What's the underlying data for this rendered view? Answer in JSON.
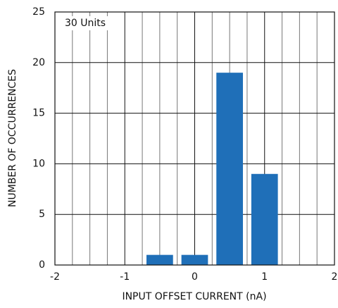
{
  "chart_data": {
    "type": "histogram",
    "annotation": "30 Units",
    "xlabel": "INPUT OFFSET CURRENT (nA)",
    "ylabel": "NUMBER OF OCCURRENCES",
    "bins": [
      -0.75,
      -0.25,
      0.25,
      0.75,
      1.25
    ],
    "counts": [
      1,
      1,
      19,
      9
    ],
    "color": "#1f6fb8",
    "xlim": [
      -2,
      2
    ],
    "xticks": [
      -2,
      -1,
      0,
      1,
      2
    ],
    "x_minor_ticks": [
      -1.75,
      -1.5,
      -1.25,
      -0.75,
      -0.5,
      -0.25,
      0.25,
      0.5,
      0.75,
      1.25,
      1.5,
      1.75
    ],
    "ylim": [
      0,
      25
    ],
    "yticks": [
      0,
      5,
      10,
      15,
      20,
      25
    ],
    "grid": true
  }
}
